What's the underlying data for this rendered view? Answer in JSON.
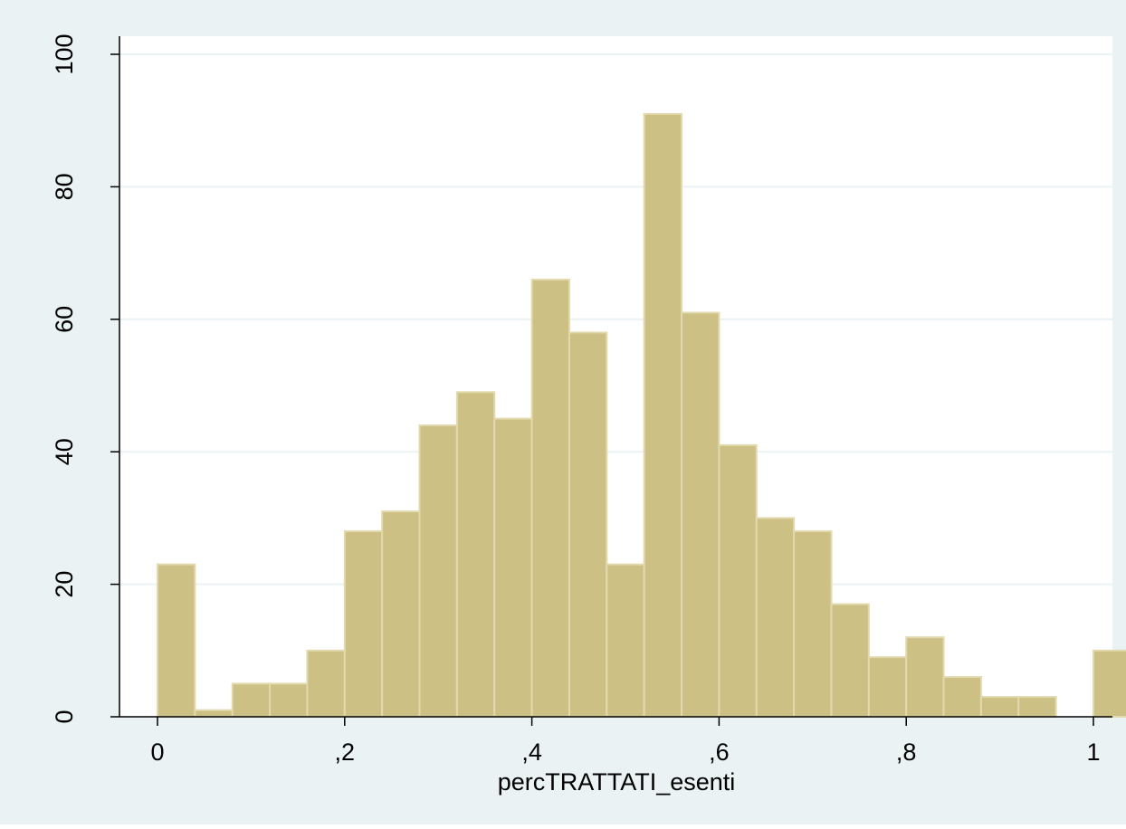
{
  "chart_data": {
    "type": "bar",
    "subtype": "histogram",
    "xlabel": "percTRATTATI_esenti",
    "ylabel": "",
    "bin_width": 0.04,
    "bins": [
      {
        "x_start": 0.0,
        "x_end": 0.04,
        "value": 23
      },
      {
        "x_start": 0.04,
        "x_end": 0.08,
        "value": 1
      },
      {
        "x_start": 0.08,
        "x_end": 0.12,
        "value": 5
      },
      {
        "x_start": 0.12,
        "x_end": 0.16,
        "value": 5
      },
      {
        "x_start": 0.16,
        "x_end": 0.2,
        "value": 10
      },
      {
        "x_start": 0.2,
        "x_end": 0.24,
        "value": 28
      },
      {
        "x_start": 0.24,
        "x_end": 0.28,
        "value": 31
      },
      {
        "x_start": 0.28,
        "x_end": 0.32,
        "value": 44
      },
      {
        "x_start": 0.32,
        "x_end": 0.36,
        "value": 49
      },
      {
        "x_start": 0.36,
        "x_end": 0.4,
        "value": 45
      },
      {
        "x_start": 0.4,
        "x_end": 0.44,
        "value": 66
      },
      {
        "x_start": 0.44,
        "x_end": 0.48,
        "value": 58
      },
      {
        "x_start": 0.48,
        "x_end": 0.52,
        "value": 23
      },
      {
        "x_start": 0.52,
        "x_end": 0.56,
        "value": 91
      },
      {
        "x_start": 0.56,
        "x_end": 0.6,
        "value": 61
      },
      {
        "x_start": 0.6,
        "x_end": 0.64,
        "value": 41
      },
      {
        "x_start": 0.64,
        "x_end": 0.68,
        "value": 30
      },
      {
        "x_start": 0.68,
        "x_end": 0.72,
        "value": 28
      },
      {
        "x_start": 0.72,
        "x_end": 0.76,
        "value": 17
      },
      {
        "x_start": 0.76,
        "x_end": 0.8,
        "value": 9
      },
      {
        "x_start": 0.8,
        "x_end": 0.84,
        "value": 12
      },
      {
        "x_start": 0.84,
        "x_end": 0.88,
        "value": 6
      },
      {
        "x_start": 0.88,
        "x_end": 0.92,
        "value": 3
      },
      {
        "x_start": 0.92,
        "x_end": 0.96,
        "value": 3
      },
      {
        "x_start": 0.96,
        "x_end": 1.0,
        "value": 0
      },
      {
        "x_start": 1.0,
        "x_end": 1.04,
        "value": 10
      }
    ],
    "xlim": [
      0,
      1.04
    ],
    "ylim": [
      0,
      100
    ],
    "x_ticks": [
      {
        "value": 0,
        "label": "0"
      },
      {
        "value": 0.2,
        "label": ",2"
      },
      {
        "value": 0.4,
        "label": ",4"
      },
      {
        "value": 0.6,
        "label": ",6"
      },
      {
        "value": 0.8,
        "label": ",8"
      },
      {
        "value": 1.0,
        "label": "1"
      }
    ],
    "y_ticks": [
      {
        "value": 0,
        "label": "0"
      },
      {
        "value": 20,
        "label": "20"
      },
      {
        "value": 40,
        "label": "40"
      },
      {
        "value": 60,
        "label": "60"
      },
      {
        "value": 80,
        "label": "80"
      },
      {
        "value": 100,
        "label": "100"
      }
    ],
    "grid": "horizontal",
    "colors": {
      "outer_background": "#eaf2f3",
      "plot_background": "#ffffff",
      "bar_fill": "#cdc084",
      "bar_edge": "#e2d9ae",
      "grid_line": "#eaf2f3",
      "axis_line": "#000000",
      "text": "#000000"
    }
  }
}
